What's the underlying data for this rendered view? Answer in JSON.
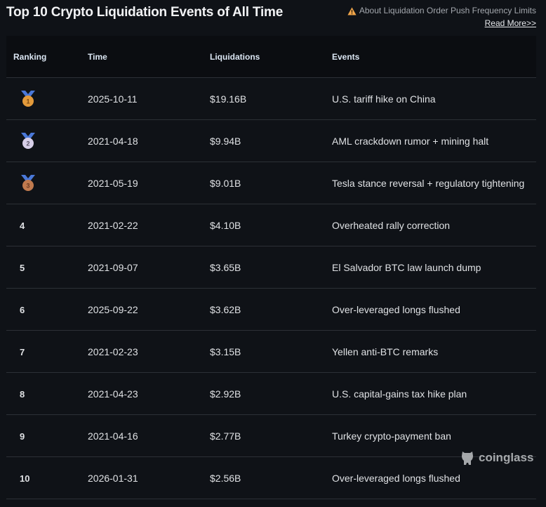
{
  "header": {
    "title": "Top 10 Crypto Liquidation Events of All Time",
    "notice_text": "About Liquidation Order Push Frequency Limits",
    "notice_icon": "warning-icon",
    "read_more_label": "Read More>>"
  },
  "table": {
    "columns": [
      "Ranking",
      "Time",
      "Liquidations",
      "Events"
    ],
    "rows": [
      {
        "rank": "1",
        "medal": "gold",
        "time": "2025-10-11",
        "liquidations": "$19.16B",
        "event": "U.S. tariff hike on China"
      },
      {
        "rank": "2",
        "medal": "silver",
        "time": "2021-04-18",
        "liquidations": "$9.94B",
        "event": "AML crackdown rumor + mining halt"
      },
      {
        "rank": "3",
        "medal": "bronze",
        "time": "2021-05-19",
        "liquidations": "$9.01B",
        "event": "Tesla stance reversal + regulatory tightening"
      },
      {
        "rank": "4",
        "medal": null,
        "time": "2021-02-22",
        "liquidations": "$4.10B",
        "event": "Overheated rally correction"
      },
      {
        "rank": "5",
        "medal": null,
        "time": "2021-09-07",
        "liquidations": "$3.65B",
        "event": "El Salvador BTC law launch dump"
      },
      {
        "rank": "6",
        "medal": null,
        "time": "2025-09-22",
        "liquidations": "$3.62B",
        "event": "Over-leveraged longs flushed"
      },
      {
        "rank": "7",
        "medal": null,
        "time": "2021-02-23",
        "liquidations": "$3.15B",
        "event": "Yellen anti-BTC remarks"
      },
      {
        "rank": "8",
        "medal": null,
        "time": "2021-04-23",
        "liquidations": "$2.92B",
        "event": "U.S. capital-gains tax hike plan"
      },
      {
        "rank": "9",
        "medal": null,
        "time": "2021-04-16",
        "liquidations": "$2.77B",
        "event": "Turkey crypto-payment ban"
      },
      {
        "rank": "10",
        "medal": null,
        "time": "2026-01-31",
        "liquidations": "$2.56B",
        "event": "Over-leveraged longs flushed"
      }
    ]
  },
  "watermark": {
    "text": "coinglass",
    "icon": "coinglass-logo-icon"
  },
  "colors": {
    "background": "#0f1217",
    "header_bg": "#0b0d11",
    "border": "#2c3036",
    "warning": "#f0a54a",
    "medal_ribbon": "#4a78d8",
    "gold": "#e39a3b",
    "silver": "#d7cfe8",
    "bronze": "#c07a4e"
  }
}
